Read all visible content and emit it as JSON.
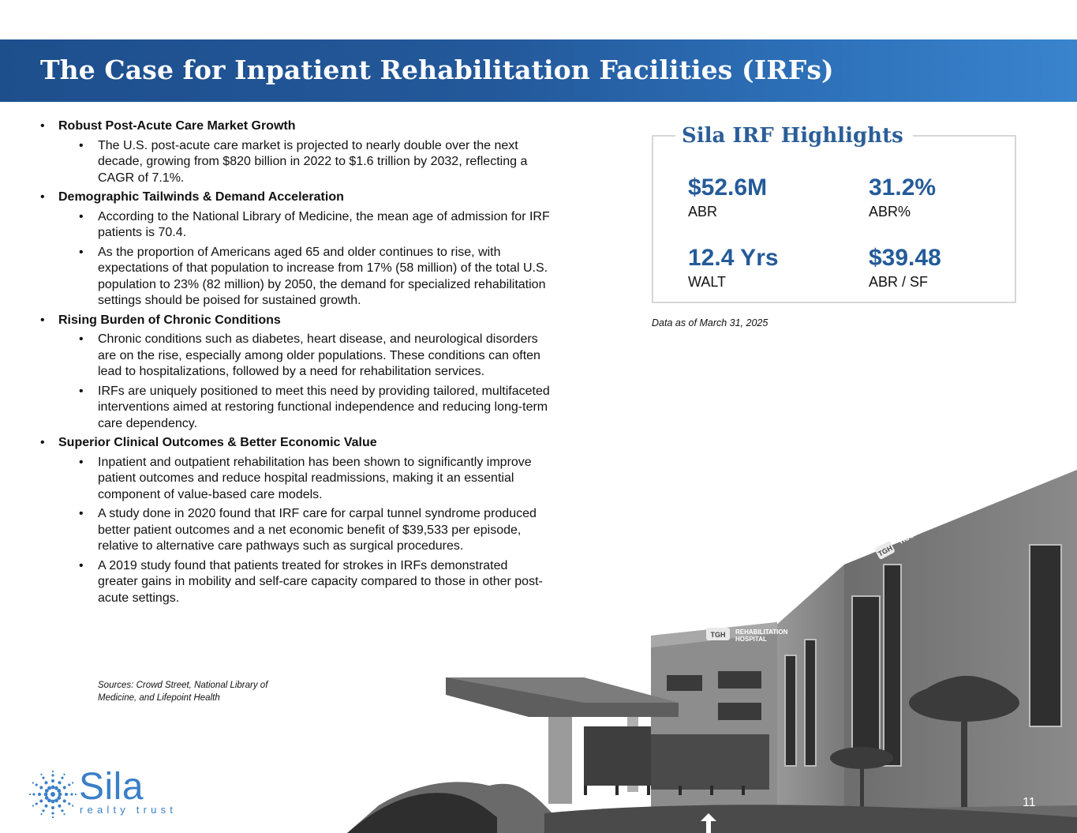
{
  "title": "The Case for Inpatient Rehabilitation Facilities (IRFs)",
  "sections": [
    {
      "heading": "Robust Post-Acute Care Market Growth",
      "items": [
        "The U.S. post-acute care market is projected to nearly double over the next decade, growing from $820 billion in 2022 to $1.6 trillion by 2032, reflecting a CAGR of 7.1%."
      ]
    },
    {
      "heading": "Demographic Tailwinds & Demand Acceleration",
      "items": [
        "According to the National Library of Medicine, the mean age of admission for IRF patients is 70.4.",
        "As the proportion of Americans aged 65 and older continues to rise, with expectations of that population to increase from 17% (58 million) of the total U.S. population to 23% (82 million) by 2050, the demand for specialized rehabilitation settings should be poised for sustained growth."
      ]
    },
    {
      "heading": "Rising Burden of Chronic Conditions",
      "items": [
        "Chronic conditions such as diabetes, heart disease, and neurological disorders are on the rise, especially among older populations. These conditions can often lead to hospitalizations, followed by a need for rehabilitation services.",
        "IRFs are uniquely positioned to meet this need by providing tailored, multifaceted interventions aimed at restoring functional independence and reducing long-term care dependency."
      ]
    },
    {
      "heading": "Superior Clinical Outcomes & Better Economic Value",
      "items": [
        "Inpatient and outpatient rehabilitation has been shown to significantly improve patient outcomes and reduce hospital readmissions, making it an essential component of value-based care models.",
        "A study done in 2020 found that IRF care for carpal tunnel syndrome produced better patient outcomes and a net economic benefit of $39,533 per episode, relative to alternative care pathways such as surgical procedures.",
        "A 2019 study found that patients treated for strokes in IRFs demonstrated greater gains in mobility and self-care capacity compared to those in other post-acute settings."
      ]
    }
  ],
  "sources": "Sources: Crowd Street, National Library of Medicine, and Lifepoint Health",
  "highlights": {
    "title": "Sila IRF Highlights",
    "metrics": [
      {
        "value": "$52.6M",
        "label": "ABR"
      },
      {
        "value": "31.2%",
        "label": "ABR%"
      },
      {
        "value": "12.4 Yrs",
        "label": "WALT"
      },
      {
        "value": "$39.48",
        "label": "ABR / SF"
      }
    ],
    "note": "Data as of March 31, 2025"
  },
  "building_signage": {
    "tower": "TGH",
    "tower_line1": "REHABILITATION",
    "tower_line2": "HOSPITAL",
    "canopy": "TGH",
    "canopy_line1": "REHABILITATION",
    "canopy_line2": "HOSPITAL"
  },
  "logo": {
    "word": "Sila",
    "sub": "realty trust"
  },
  "page_number": "11"
}
